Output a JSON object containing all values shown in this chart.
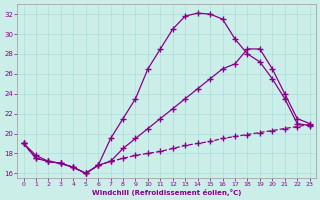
{
  "xlabel": "Windchill (Refroidissement éolien,°C)",
  "bg_color": "#cceee8",
  "line_color": "#880088",
  "grid_color": "#aadddd",
  "xlim": [
    -0.5,
    23.5
  ],
  "ylim": [
    15.5,
    33.0
  ],
  "yticks": [
    16,
    18,
    20,
    22,
    24,
    26,
    28,
    30,
    32
  ],
  "xticks": [
    0,
    1,
    2,
    3,
    4,
    5,
    6,
    7,
    8,
    9,
    10,
    11,
    12,
    13,
    14,
    15,
    16,
    17,
    18,
    19,
    20,
    21,
    22,
    23
  ],
  "series1_x": [
    0,
    1,
    2,
    3,
    4,
    5,
    6,
    7,
    8,
    9,
    10,
    11,
    12,
    13,
    14,
    15,
    16,
    17,
    18,
    19,
    20,
    21,
    22,
    23
  ],
  "series1_y": [
    19.0,
    17.8,
    17.2,
    17.0,
    16.6,
    16.0,
    16.8,
    19.5,
    21.5,
    23.5,
    26.5,
    28.5,
    30.5,
    31.8,
    32.1,
    32.0,
    31.5,
    29.5,
    28.0,
    27.2,
    25.5,
    23.5,
    21.0,
    20.8
  ],
  "series2_x": [
    0,
    1,
    2,
    3,
    4,
    5,
    6,
    7,
    8,
    9,
    10,
    11,
    12,
    13,
    14,
    15,
    16,
    17,
    18,
    19,
    20,
    21,
    22,
    23
  ],
  "series2_y": [
    19.0,
    17.5,
    17.2,
    17.0,
    16.6,
    16.0,
    16.8,
    17.2,
    18.5,
    19.5,
    20.5,
    21.5,
    22.5,
    23.5,
    24.5,
    25.5,
    26.5,
    27.0,
    28.5,
    28.5,
    26.5,
    24.0,
    21.5,
    21.0
  ],
  "series3_x": [
    0,
    1,
    2,
    3,
    4,
    5,
    6,
    7,
    8,
    9,
    10,
    11,
    12,
    13,
    14,
    15,
    16,
    17,
    18,
    19,
    20,
    21,
    22,
    23
  ],
  "series3_y": [
    19.0,
    17.5,
    17.2,
    17.0,
    16.6,
    16.0,
    16.8,
    17.2,
    17.5,
    17.8,
    18.0,
    18.2,
    18.5,
    18.8,
    19.0,
    19.2,
    19.5,
    19.7,
    19.9,
    20.1,
    20.3,
    20.5,
    20.7,
    20.9
  ]
}
